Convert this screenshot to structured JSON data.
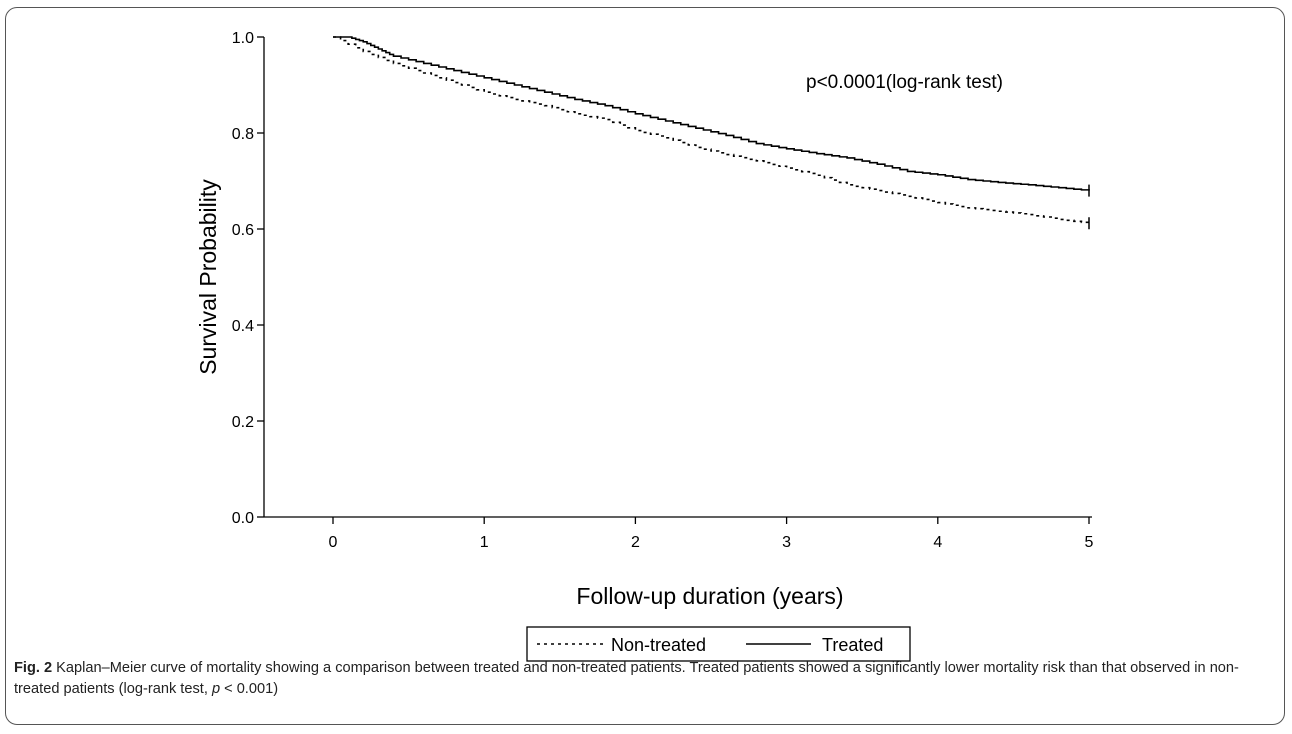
{
  "chart_data": {
    "type": "line",
    "subtype": "kaplan-meier step curve",
    "title": "",
    "xlabel": "Follow-up duration (years)",
    "ylabel": "Survival Probability",
    "xlim": [
      -0.2,
      5.0
    ],
    "ylim": [
      0.0,
      1.0
    ],
    "x_ticks": [
      0,
      1,
      2,
      3,
      4,
      5
    ],
    "y_ticks": [
      0.0,
      0.2,
      0.4,
      0.6,
      0.8,
      1.0
    ],
    "x_tick_labels": [
      "0",
      "1",
      "2",
      "3",
      "4",
      "5"
    ],
    "y_tick_labels": [
      "0.0",
      "0.2",
      "0.4",
      "0.6",
      "0.8",
      "1.0"
    ],
    "grid": false,
    "legend_position": "bottom-center, below axis",
    "annotation": "p<0.0001(log-rank test)",
    "series": [
      {
        "name": "Non-treated",
        "line_style": "dashed",
        "color": "#000000",
        "censor_mark_at_end": true,
        "x": [
          0,
          0.2,
          0.4,
          0.6,
          0.8,
          1.0,
          1.2,
          1.4,
          1.6,
          1.8,
          2.0,
          2.2,
          2.4,
          2.6,
          2.8,
          3.0,
          3.2,
          3.4,
          3.6,
          3.8,
          4.0,
          4.2,
          4.4,
          4.6,
          4.8,
          5.0
        ],
        "y": [
          1.0,
          0.97,
          0.945,
          0.925,
          0.905,
          0.885,
          0.87,
          0.857,
          0.84,
          0.828,
          0.805,
          0.79,
          0.77,
          0.755,
          0.742,
          0.727,
          0.712,
          0.692,
          0.68,
          0.668,
          0.655,
          0.644,
          0.637,
          0.63,
          0.62,
          0.612
        ]
      },
      {
        "name": "Treated",
        "line_style": "solid",
        "color": "#000000",
        "censor_mark_at_end": true,
        "x": [
          0,
          0.1,
          0.2,
          0.3,
          0.4,
          0.6,
          0.8,
          1.0,
          1.2,
          1.4,
          1.6,
          1.8,
          2.0,
          2.2,
          2.4,
          2.6,
          2.8,
          3.0,
          3.2,
          3.4,
          3.6,
          3.8,
          4.0,
          4.2,
          4.4,
          4.6,
          4.8,
          5.0
        ],
        "y": [
          1.0,
          1.0,
          0.99,
          0.975,
          0.96,
          0.945,
          0.93,
          0.915,
          0.9,
          0.885,
          0.87,
          0.857,
          0.84,
          0.825,
          0.81,
          0.795,
          0.778,
          0.767,
          0.757,
          0.748,
          0.735,
          0.72,
          0.713,
          0.703,
          0.697,
          0.692,
          0.686,
          0.68
        ]
      }
    ]
  },
  "caption": {
    "label": "Fig. 2",
    "text_before_p": " Kaplan–Meier curve of mortality showing a comparison between treated and non-treated patients. Treated patients showed a significantly lower mortality risk than that observed in non-treated patients (log-rank test, ",
    "p_symbol": "p",
    "text_after_p": " < 0.001)"
  }
}
